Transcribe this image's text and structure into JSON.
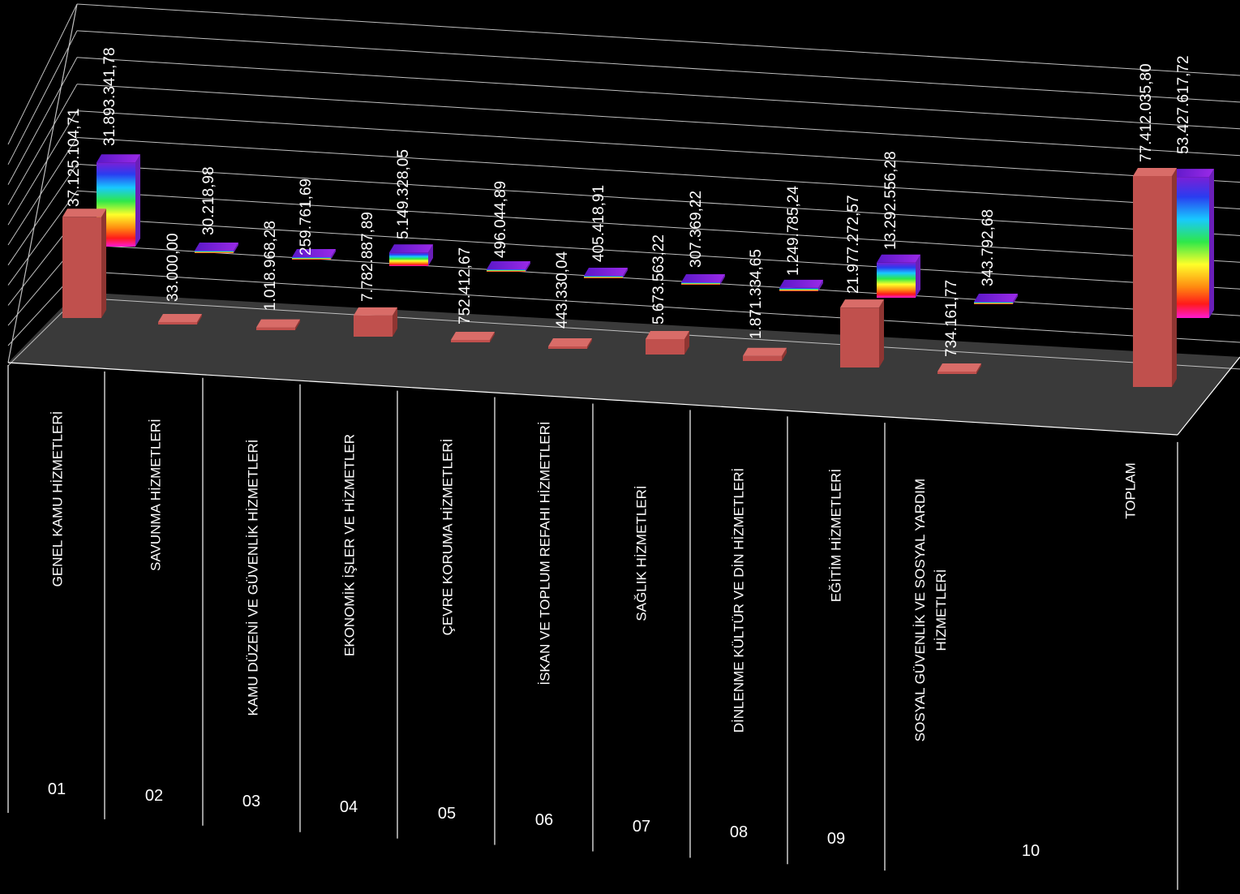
{
  "chart_data": {
    "type": "bar",
    "categories": [
      "GENEL KAMU HİZMETLERİ",
      "SAVUNMA HİZMETLERİ",
      "KAMU DÜZENİ VE GÜVENLİK HİZMETLERİ",
      "EKONOMİK İŞLER VE HİZMETLER",
      "ÇEVRE KORUMA HİZMETLERİ",
      "İSKAN VE TOPLUM REFAHI HİZMETLERİ",
      "SAĞLIK HİZMETLERİ",
      "DİNLENME KÜLTÜR VE DİN HİZMETLERİ",
      "EĞİTİM HİZMETLERİ",
      "SOSYAL GÜVENLİK VE SOSYAL YARDIM HİZMETLERİ",
      "TOPLAM"
    ],
    "codes": [
      "01",
      "02",
      "03",
      "04",
      "05",
      "06",
      "07",
      "08",
      "09",
      "10",
      ""
    ],
    "series": [
      {
        "values": [
          37125104.71,
          33000.0,
          1018968.28,
          7782887.89,
          752412.67,
          443330.04,
          5673563.22,
          1871334.65,
          21977272.57,
          734161.77,
          77412035.8
        ],
        "labels": [
          "37.125.104,71",
          "33.000,00",
          "1.018.968,28",
          "7.782.887,89",
          "752.412,67",
          "443.330,04",
          "5.673.563,22",
          "1.871.334,65",
          "21.977.272,57",
          "734.161,77",
          "77.412.035,80"
        ],
        "color": "#c0504d"
      },
      {
        "values": [
          31893341.78,
          30218.98,
          259761.69,
          5149328.05,
          496044.89,
          405418.91,
          307369.22,
          1249785.24,
          13292556.28,
          343792.68,
          53427617.72
        ],
        "labels": [
          "31.893.341,78",
          "30.218,98",
          "259.761,69",
          "5.149.328,05",
          "496.044,89",
          "405.418,91",
          "307.369,22",
          "1.249.785,24",
          "13.292.556,28",
          "343.792,68",
          "53.427.617,72"
        ],
        "color": "rainbow"
      }
    ],
    "grid": true,
    "legend": "none",
    "colors": {
      "floor": "#3a3a3a",
      "grid": "#bfbfbf",
      "label_text": "#ffffff",
      "background": "#000000"
    }
  }
}
